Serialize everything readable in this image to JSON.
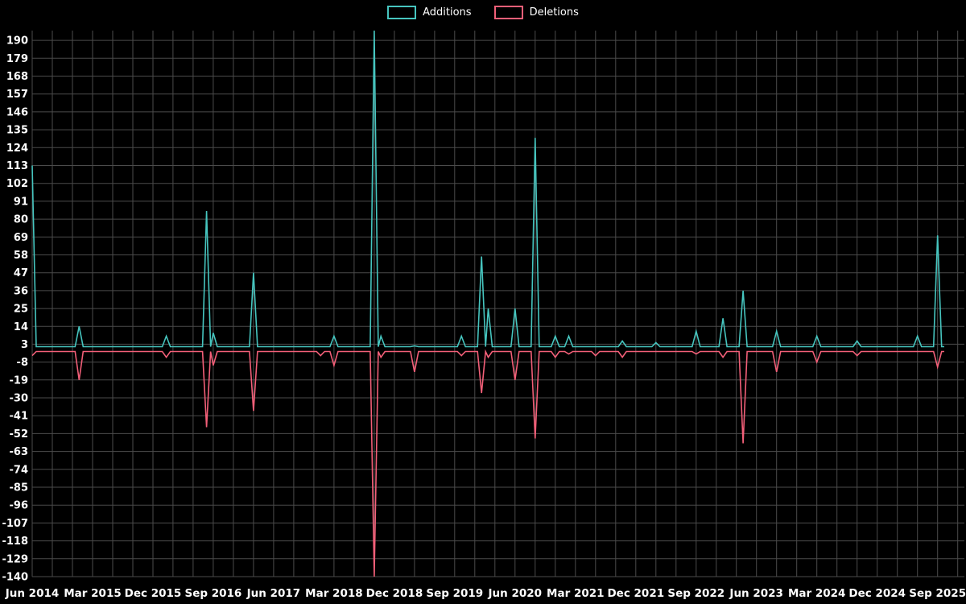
{
  "legend": {
    "additions_label": "Additions",
    "deletions_label": "Deletions"
  },
  "chart_data": {
    "type": "line",
    "title": "",
    "xlabel": "",
    "ylabel": "",
    "grid": true,
    "legend_position": "top-center",
    "background_color": "#000000",
    "grid_color": "#4b4b4b",
    "text_color": "#ffffff",
    "ylim": [
      -140,
      196
    ],
    "y_ticks": [
      190,
      179,
      168,
      157,
      146,
      135,
      124,
      113,
      102,
      91,
      80,
      69,
      58,
      47,
      36,
      25,
      14,
      3,
      -8,
      -19,
      -30,
      -41,
      -52,
      -63,
      -74,
      -85,
      -96,
      -107,
      -118,
      -129,
      -140
    ],
    "x_tick_labels": [
      "Jun 2014",
      "Mar 2015",
      "Dec 2015",
      "Sep 2016",
      "Jun 2017",
      "Mar 2018",
      "Dec 2018",
      "Sep 2019",
      "Jun 2020",
      "Mar 2021",
      "Dec 2021",
      "Sep 2022",
      "Jun 2023",
      "Mar 2024",
      "Dec 2024",
      "Sep 2025"
    ],
    "x_tick_months": [
      0,
      9,
      18,
      27,
      36,
      45,
      54,
      63,
      72,
      81,
      90,
      99,
      108,
      117,
      126,
      135
    ],
    "x_total_months": 139,
    "x_grid_every": 3,
    "line_end_month": 136,
    "series": [
      {
        "name": "Additions",
        "color": "#46c5bf",
        "baseline": 1.5,
        "spikes": [
          {
            "m": 0,
            "v": 113
          },
          {
            "m": 7,
            "v": 14
          },
          {
            "m": 20,
            "v": 8
          },
          {
            "m": 26,
            "v": 85
          },
          {
            "m": 27,
            "v": 10
          },
          {
            "m": 33,
            "v": 47
          },
          {
            "m": 45,
            "v": 8
          },
          {
            "m": 51,
            "v": 196
          },
          {
            "m": 52,
            "v": 8
          },
          {
            "m": 57,
            "v": 2
          },
          {
            "m": 64,
            "v": 8
          },
          {
            "m": 67,
            "v": 57
          },
          {
            "m": 68,
            "v": 25
          },
          {
            "m": 72,
            "v": 25
          },
          {
            "m": 75,
            "v": 130
          },
          {
            "m": 78,
            "v": 8
          },
          {
            "m": 80,
            "v": 8
          },
          {
            "m": 88,
            "v": 5
          },
          {
            "m": 93,
            "v": 4
          },
          {
            "m": 99,
            "v": 11
          },
          {
            "m": 103,
            "v": 19
          },
          {
            "m": 106,
            "v": 36
          },
          {
            "m": 111,
            "v": 11
          },
          {
            "m": 117,
            "v": 8
          },
          {
            "m": 123,
            "v": 5
          },
          {
            "m": 132,
            "v": 8
          },
          {
            "m": 135,
            "v": 70
          }
        ]
      },
      {
        "name": "Deletions",
        "color": "#f25f78",
        "baseline": -1.5,
        "spikes": [
          {
            "m": 0,
            "v": -4
          },
          {
            "m": 7,
            "v": -19
          },
          {
            "m": 20,
            "v": -5
          },
          {
            "m": 26,
            "v": -48
          },
          {
            "m": 27,
            "v": -10
          },
          {
            "m": 33,
            "v": -38
          },
          {
            "m": 43,
            "v": -4
          },
          {
            "m": 45,
            "v": -10
          },
          {
            "m": 51,
            "v": -140
          },
          {
            "m": 52,
            "v": -5
          },
          {
            "m": 57,
            "v": -14
          },
          {
            "m": 64,
            "v": -4
          },
          {
            "m": 67,
            "v": -27
          },
          {
            "m": 68,
            "v": -5
          },
          {
            "m": 72,
            "v": -19
          },
          {
            "m": 75,
            "v": -55
          },
          {
            "m": 78,
            "v": -5
          },
          {
            "m": 80,
            "v": -3
          },
          {
            "m": 84,
            "v": -4
          },
          {
            "m": 88,
            "v": -5
          },
          {
            "m": 99,
            "v": -3
          },
          {
            "m": 103,
            "v": -5
          },
          {
            "m": 106,
            "v": -58
          },
          {
            "m": 111,
            "v": -14
          },
          {
            "m": 117,
            "v": -8
          },
          {
            "m": 123,
            "v": -4
          },
          {
            "m": 135,
            "v": -11
          }
        ]
      }
    ]
  }
}
